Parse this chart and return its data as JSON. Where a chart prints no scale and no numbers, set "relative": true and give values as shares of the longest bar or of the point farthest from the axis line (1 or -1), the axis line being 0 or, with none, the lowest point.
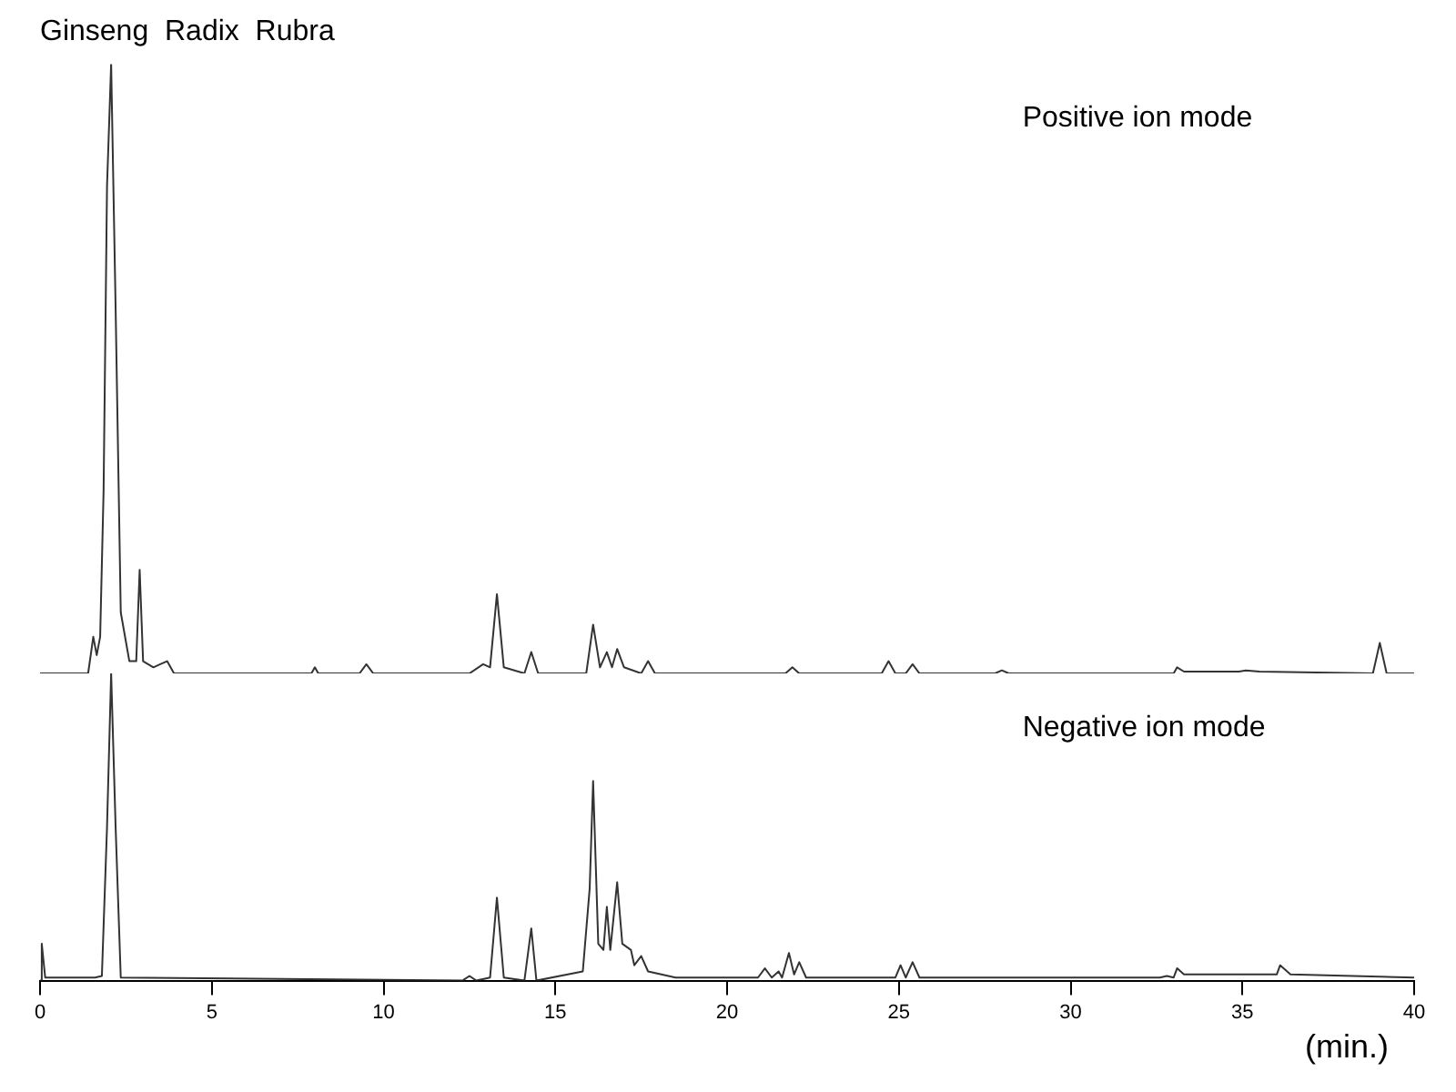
{
  "chart_data": [
    {
      "type": "line",
      "title": "Ginseng  Radix  Rubra",
      "annotations": [
        "Positive ion mode"
      ],
      "relative": true,
      "xlim": [
        0,
        40
      ],
      "tick_labels": false,
      "grid": false,
      "legend": false,
      "marker": "none",
      "line_style": "solid",
      "series": [
        {
          "color": "#333333",
          "x": [
            0,
            1.4,
            1.55,
            1.65,
            1.75,
            1.85,
            1.95,
            2.07,
            2.2,
            2.35,
            2.6,
            2.8,
            2.9,
            3.0,
            3.3,
            3.5,
            3.7,
            3.9,
            7.9,
            8.0,
            8.1,
            9.3,
            9.5,
            9.7,
            12.5,
            12.9,
            13.1,
            13.3,
            13.5,
            14.1,
            14.3,
            14.5,
            15.9,
            16.1,
            16.3,
            16.5,
            16.65,
            16.8,
            17.0,
            17.5,
            17.7,
            17.9,
            21.7,
            21.9,
            22.1,
            24.5,
            24.7,
            24.9,
            25.2,
            25.4,
            25.6,
            27.8,
            28,
            28.2,
            33.0,
            33.1,
            33.3,
            34.9,
            35.1,
            35.5,
            38.8,
            39.0,
            39.2,
            40
          ],
          "values": [
            0,
            0,
            0.06,
            0.03,
            0.06,
            0.3,
            0.8,
            1,
            0.6,
            0.1,
            0.02,
            0.02,
            0.17,
            0.02,
            0.01,
            0.015,
            0.02,
            0,
            0,
            0.01,
            0,
            0,
            0.015,
            0,
            0,
            0.015,
            0.01,
            0.13,
            0.01,
            0,
            0.035,
            0,
            0,
            0.08,
            0.01,
            0.035,
            0.01,
            0.04,
            0.01,
            0,
            0.02,
            0,
            0,
            0.01,
            0,
            0,
            0.02,
            0,
            0,
            0.015,
            0,
            0,
            0.005,
            0,
            0,
            0.01,
            0.003,
            0.003,
            0.005,
            0.003,
            0,
            0.05,
            0,
            0
          ]
        }
      ]
    },
    {
      "type": "line",
      "xlabel": "(min.)",
      "annotations": [
        "Negative ion mode"
      ],
      "relative": true,
      "xlim": [
        0,
        40
      ],
      "xticks": [
        0,
        5,
        10,
        15,
        20,
        25,
        30,
        35,
        40
      ],
      "tick_labels": "x",
      "grid": false,
      "legend": false,
      "marker": "none",
      "line_style": "solid",
      "series": [
        {
          "color": "#333333",
          "x": [
            0,
            0.05,
            0.15,
            1.6,
            1.8,
            1.95,
            2.07,
            2.2,
            2.35,
            12.3,
            12.5,
            12.7,
            13.1,
            13.3,
            13.5,
            14.1,
            14.3,
            14.45,
            15.8,
            16.0,
            16.1,
            16.25,
            16.4,
            16.5,
            16.6,
            16.8,
            16.95,
            17.2,
            17.3,
            17.5,
            17.7,
            18.5,
            20.9,
            21.1,
            21.3,
            21.5,
            21.6,
            21.8,
            21.95,
            22.1,
            22.3,
            24.9,
            25.05,
            25.2,
            25.4,
            25.6,
            32.6,
            32.8,
            33.0,
            33.1,
            33.3,
            34,
            35,
            36.0,
            36.1,
            36.4,
            40
          ],
          "values": [
            0,
            0.12,
            0.01,
            0.01,
            0.015,
            0.5,
            1,
            0.5,
            0.01,
            0,
            0.015,
            0,
            0.01,
            0.27,
            0.01,
            0,
            0.17,
            0,
            0.03,
            0.3,
            0.65,
            0.12,
            0.1,
            0.24,
            0.1,
            0.32,
            0.12,
            0.1,
            0.05,
            0.08,
            0.03,
            0.01,
            0.01,
            0.04,
            0.01,
            0.03,
            0.01,
            0.09,
            0.02,
            0.06,
            0.01,
            0.01,
            0.05,
            0.01,
            0.06,
            0.01,
            0.01,
            0.015,
            0.01,
            0.04,
            0.02,
            0.02,
            0.02,
            0.02,
            0.05,
            0.02,
            0.01
          ]
        }
      ]
    }
  ]
}
